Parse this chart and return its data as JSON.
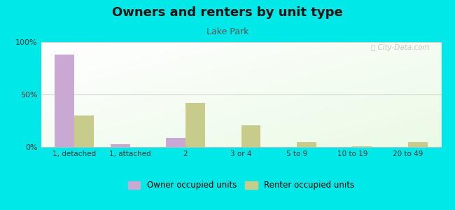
{
  "title": "Owners and renters by unit type",
  "subtitle": "Lake Park",
  "categories": [
    "1, detached",
    "1, attached",
    "2",
    "3 or 4",
    "5 to 9",
    "10 to 19",
    "20 to 49"
  ],
  "owner_values": [
    88,
    3,
    9,
    0,
    0,
    0,
    0
  ],
  "renter_values": [
    30,
    0,
    42,
    21,
    5,
    1,
    5
  ],
  "owner_color": "#c9a8d4",
  "renter_color": "#c8cc8a",
  "figure_bg": "#00e8e8",
  "title_fontsize": 13,
  "subtitle_fontsize": 9,
  "ylim": [
    0,
    100
  ],
  "yticks": [
    0,
    50,
    100
  ],
  "ytick_labels": [
    "0%",
    "50%",
    "100%"
  ],
  "bar_width": 0.35,
  "legend_owner": "Owner occupied units",
  "legend_renter": "Renter occupied units"
}
